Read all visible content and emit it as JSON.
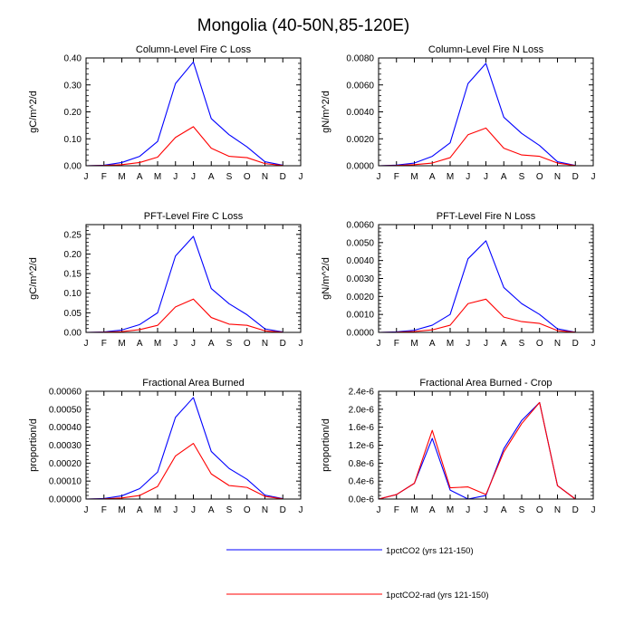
{
  "title": "Mongolia (40-50N,85-120E)",
  "months": [
    "J",
    "F",
    "M",
    "A",
    "M",
    "J",
    "J",
    "A",
    "S",
    "O",
    "N",
    "D",
    "J"
  ],
  "legend": [
    {
      "label": "1pctCO2 (yrs 121-150)",
      "color": "#0000ff"
    },
    {
      "label": "1pctCO2-rad (yrs 121-150)",
      "color": "#ff0000"
    }
  ],
  "chart_data": [
    {
      "type": "line",
      "title": "Column-Level Fire C Loss",
      "ylabel": "gC/m^2/d",
      "ylim": [
        0,
        0.4
      ],
      "yticks": [
        0,
        0.1,
        0.2,
        0.3,
        0.4
      ],
      "ytick_labels": [
        "0.00",
        "0.10",
        "0.20",
        "0.30",
        "0.40"
      ],
      "series": [
        {
          "values": [
            0.0,
            0.002,
            0.012,
            0.035,
            0.09,
            0.305,
            0.385,
            0.175,
            0.115,
            0.07,
            0.015,
            0.002
          ]
        },
        {
          "values": [
            0.0,
            0.001,
            0.004,
            0.012,
            0.032,
            0.105,
            0.145,
            0.065,
            0.035,
            0.03,
            0.008,
            0.001
          ]
        }
      ]
    },
    {
      "type": "line",
      "title": "Column-Level Fire N Loss",
      "ylabel": "gN/m^2/d",
      "ylim": [
        0,
        0.008
      ],
      "yticks": [
        0,
        0.002,
        0.004,
        0.006,
        0.008
      ],
      "ytick_labels": [
        "0.0000",
        "0.0020",
        "0.0040",
        "0.0060",
        "0.0080"
      ],
      "series": [
        {
          "values": [
            0.0,
            5e-05,
            0.0002,
            0.0007,
            0.0017,
            0.0061,
            0.0076,
            0.0036,
            0.0024,
            0.0015,
            0.0003,
            2e-05
          ]
        },
        {
          "values": [
            0.0,
            2e-05,
            8e-05,
            0.0002,
            0.0006,
            0.0023,
            0.0028,
            0.0013,
            0.0008,
            0.0007,
            0.0002,
            1e-05
          ]
        }
      ]
    },
    {
      "type": "line",
      "title": "PFT-Level Fire C Loss",
      "ylabel": "gC/m^2/d",
      "ylim": [
        0,
        0.275
      ],
      "yticks": [
        0,
        0.05,
        0.1,
        0.15,
        0.2,
        0.25
      ],
      "ytick_labels": [
        "0.00",
        "0.05",
        "0.10",
        "0.15",
        "0.20",
        "0.25"
      ],
      "series": [
        {
          "values": [
            0.0,
            0.001,
            0.006,
            0.02,
            0.05,
            0.195,
            0.245,
            0.112,
            0.073,
            0.045,
            0.009,
            0.001
          ]
        },
        {
          "values": [
            0.0,
            0.0005,
            0.002,
            0.007,
            0.018,
            0.065,
            0.085,
            0.038,
            0.021,
            0.018,
            0.004,
            0.0005
          ]
        }
      ]
    },
    {
      "type": "line",
      "title": "PFT-Level Fire N Loss",
      "ylabel": "gN/m^2/d",
      "ylim": [
        0,
        0.006
      ],
      "yticks": [
        0,
        0.001,
        0.002,
        0.003,
        0.004,
        0.005,
        0.006
      ],
      "ytick_labels": [
        "0.0000",
        "0.0010",
        "0.0020",
        "0.0030",
        "0.0040",
        "0.0050",
        "0.0060"
      ],
      "series": [
        {
          "values": [
            0.0,
            3e-05,
            0.00012,
            0.0004,
            0.001,
            0.0041,
            0.0051,
            0.0025,
            0.0016,
            0.001,
            0.0002,
            1e-05
          ]
        },
        {
          "values": [
            0.0,
            1e-05,
            5e-05,
            0.00014,
            0.0004,
            0.0016,
            0.00185,
            0.00085,
            0.0006,
            0.0005,
            0.0001,
            1e-05
          ]
        }
      ]
    },
    {
      "type": "line",
      "title": "Fractional Area Burned",
      "ylabel": "proportion/d",
      "ylim": [
        0,
        0.0006
      ],
      "yticks": [
        0,
        0.0001,
        0.0002,
        0.0003,
        0.0004,
        0.0005,
        0.0006
      ],
      "ytick_labels": [
        "0.00000",
        "0.00010",
        "0.00020",
        "0.00030",
        "0.00040",
        "0.00050",
        "0.00060"
      ],
      "series": [
        {
          "values": [
            0.0,
            3e-06,
            1.8e-05,
            5.8e-05,
            0.00015,
            0.000455,
            0.000565,
            0.000265,
            0.00017,
            0.00011,
            2.2e-05,
            2e-06
          ]
        },
        {
          "values": [
            0.0,
            1e-06,
            6e-06,
            2e-05,
            7e-05,
            0.00024,
            0.00031,
            0.00014,
            7.5e-05,
            6.5e-05,
            1.5e-05,
            1e-06
          ]
        }
      ]
    },
    {
      "type": "line",
      "title": "Fractional Area Burned - Crop",
      "ylabel": "proportion/d",
      "ylim": [
        0,
        2.4e-06
      ],
      "yticks": [
        0,
        4e-07,
        8e-07,
        1.2e-06,
        1.6e-06,
        2e-06,
        2.4e-06
      ],
      "ytick_labels": [
        "0.0e-6",
        "0.4e-6",
        "0.8e-6",
        "1.2e-6",
        "1.6e-6",
        "2.0e-6",
        "2.4e-6"
      ],
      "series": [
        {
          "values": [
            0.0,
            1e-07,
            3.5e-07,
            1.35e-06,
            2e-07,
            0.0,
            8e-08,
            1.12e-06,
            1.75e-06,
            2.15e-06,
            3e-07,
            0.0
          ]
        },
        {
          "values": [
            0.0,
            1e-07,
            3.5e-07,
            1.53e-06,
            2.5e-07,
            2.7e-07,
            1e-07,
            1.05e-06,
            1.68e-06,
            2.15e-06,
            3e-07,
            0.0
          ]
        }
      ]
    }
  ]
}
